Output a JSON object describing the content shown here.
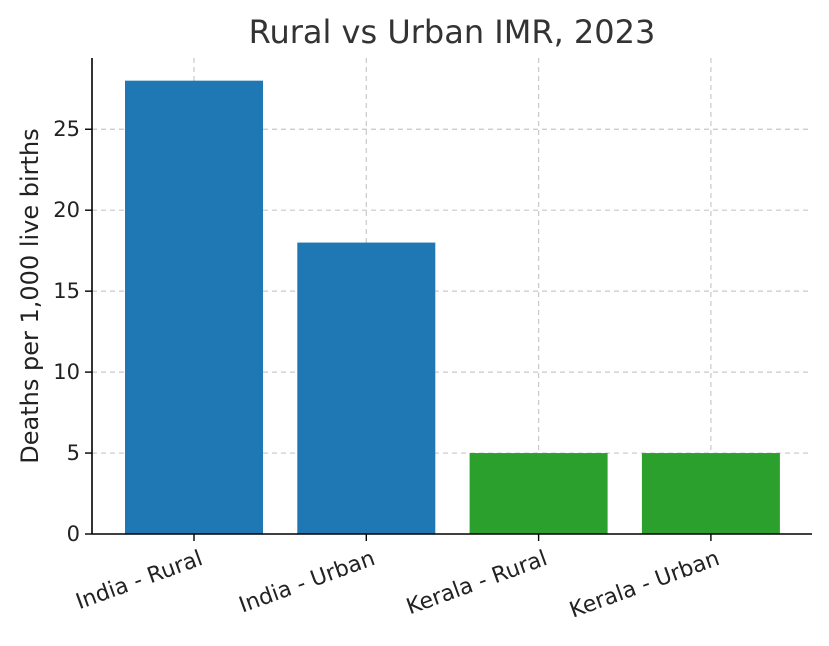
{
  "chart_data": {
    "type": "bar",
    "title": "Rural vs Urban IMR, 2023",
    "xlabel": "",
    "ylabel": "Deaths per 1,000 live births",
    "categories": [
      "India - Rural",
      "India - Urban",
      "Kerala - Rural",
      "Kerala - Urban"
    ],
    "values": [
      28,
      18,
      5,
      5
    ],
    "bar_colors": [
      "#1f77b4",
      "#1f77b4",
      "#2ca02c",
      "#2ca02c"
    ],
    "ylim": [
      0,
      29.4
    ],
    "yticks": [
      0,
      5,
      10,
      15,
      20,
      25
    ],
    "grid": true,
    "legend": "none"
  }
}
